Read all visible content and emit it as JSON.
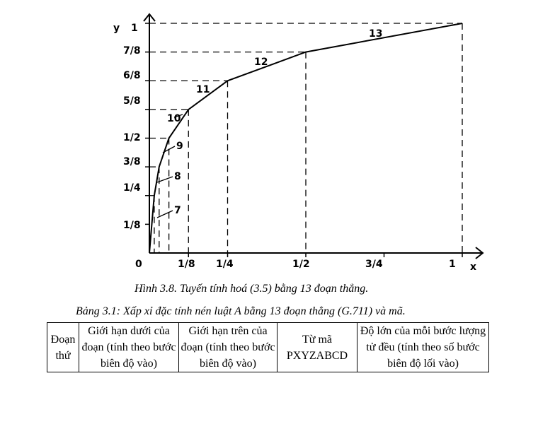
{
  "figure": {
    "y_axis_label": "y",
    "x_axis_label": "x",
    "origin_label": "0",
    "y_tick_labels": [
      "1/8",
      "1/4",
      "3/8",
      "1/2",
      "5/8",
      "6/8",
      "7/8",
      "1"
    ],
    "x_tick_labels": [
      "1/8",
      "1/4",
      "1/2",
      "3/4",
      "1"
    ],
    "segment_labels": [
      "7",
      "8",
      "9",
      "10",
      "11",
      "12",
      "13"
    ],
    "caption": "Hình 3.8. Tuyến tính hoá (3.5) bằng 13 đoạn thẳng."
  },
  "chart_data": {
    "type": "line",
    "title": "",
    "xlabel": "x",
    "ylabel": "y",
    "xlim": [
      0,
      1
    ],
    "ylim": [
      0,
      1
    ],
    "grid": false,
    "series": [
      {
        "x": [
          0,
          0.015625,
          0.03125,
          0.0625,
          0.125,
          0.25,
          0.5,
          1
        ],
        "y": [
          0,
          0.25,
          0.375,
          0.5,
          0.625,
          0.75,
          0.875,
          1
        ]
      }
    ]
  },
  "table": {
    "caption": "Bảng 3.1: Xấp xỉ đặc tính nén luật A bằng 13 đoạn thẳng (G.711) và mã.",
    "headers": [
      "Đoạn thứ",
      "Giới hạn dưới của đoạn (tính theo bước biên độ vào)",
      "Giới hạn trên của đoạn (tính theo bước biên độ vào)",
      "Từ mã PXYZABCD",
      "Độ lớn của mỗi bước lượng tử đều (tính theo số bước biên độ lối vào)"
    ]
  }
}
